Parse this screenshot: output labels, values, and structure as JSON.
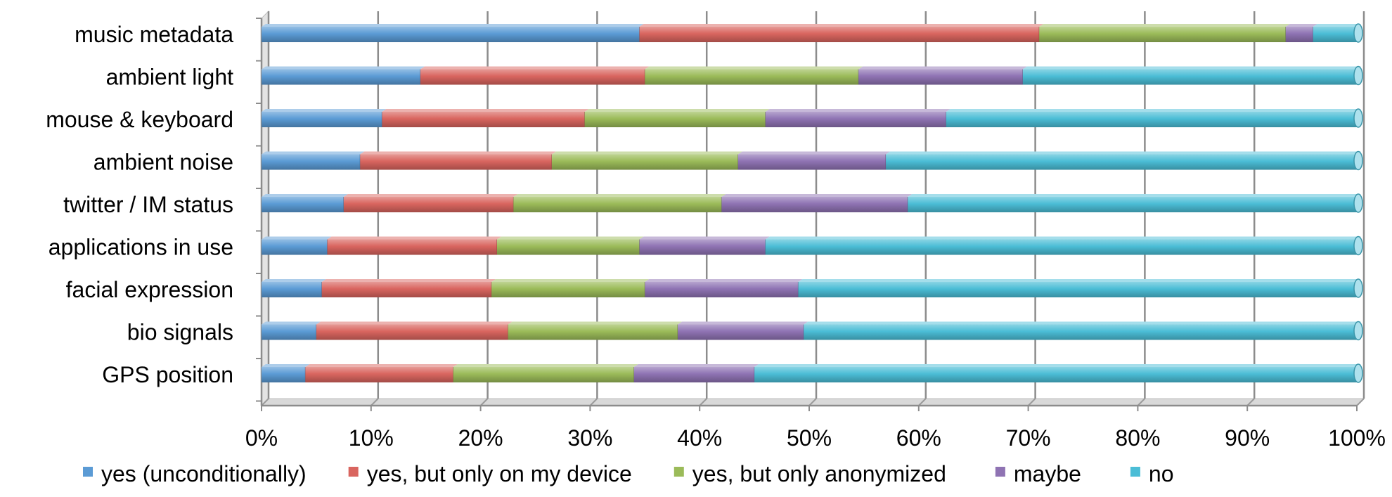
{
  "chart_data": {
    "type": "bar",
    "orientation": "horizontal",
    "stacked": true,
    "percent_stacked": true,
    "three_d": true,
    "title": "",
    "xlabel": "",
    "ylabel": "",
    "xlim": [
      0,
      100
    ],
    "grid": true,
    "legend_position": "bottom",
    "x_ticks": [
      "0%",
      "10%",
      "20%",
      "30%",
      "40%",
      "50%",
      "60%",
      "70%",
      "80%",
      "90%",
      "100%"
    ],
    "categories": [
      "music metadata",
      "ambient light",
      "mouse & keyboard",
      "ambient noise",
      "twitter / IM status",
      "applications in use",
      "facial expression",
      "bio signals",
      "GPS position"
    ],
    "series": [
      {
        "name": "yes (unconditionally)",
        "color": "#5b9bd5",
        "values": [
          34.5,
          14.5,
          11,
          9,
          7.5,
          6,
          5.5,
          5,
          4
        ]
      },
      {
        "name": "yes, but only on my device",
        "color": "#d9655f",
        "values": [
          36.5,
          20.5,
          18.5,
          17.5,
          15.5,
          15.5,
          15.5,
          17.5,
          13.5
        ]
      },
      {
        "name": "yes, but only anonymized",
        "color": "#9bbb59",
        "values": [
          22.5,
          19.5,
          16.5,
          17,
          19,
          13,
          14,
          15.5,
          16.5
        ]
      },
      {
        "name": "maybe",
        "color": "#8f73b3",
        "values": [
          2.5,
          15,
          16.5,
          13.5,
          17,
          11.5,
          14,
          11.5,
          11
        ]
      },
      {
        "name": "no",
        "color": "#4bbdd6",
        "values": [
          4,
          30.5,
          37.5,
          43,
          41,
          54,
          51,
          50.5,
          55
        ]
      }
    ]
  }
}
